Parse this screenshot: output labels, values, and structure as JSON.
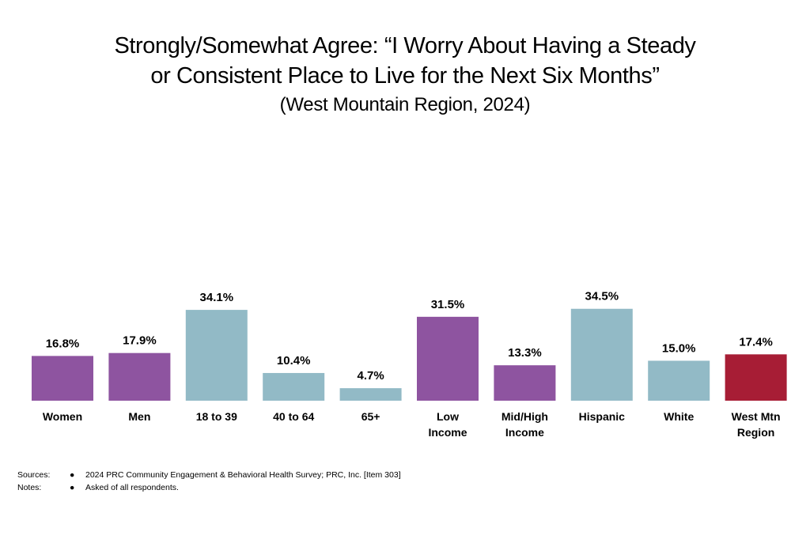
{
  "chart_data": {
    "type": "bar",
    "title_line1": "Strongly/Somewhat Agree: “I Worry About Having a Steady",
    "title_line2": "or Consistent Place to Live for the Next Six Months”",
    "subtitle": "(West Mountain Region, 2024)",
    "categories": [
      [
        "Women"
      ],
      [
        "Men"
      ],
      [
        "18 to 39"
      ],
      [
        "40 to 64"
      ],
      [
        "65+"
      ],
      [
        "Low",
        "Income"
      ],
      [
        "Mid/High",
        "Income"
      ],
      [
        "Hispanic"
      ],
      [
        "White"
      ],
      [
        "West Mtn",
        "Region"
      ]
    ],
    "values": [
      16.8,
      17.9,
      34.1,
      10.4,
      4.7,
      31.5,
      13.3,
      34.5,
      15.0,
      17.4
    ],
    "value_labels": [
      "16.8%",
      "17.9%",
      "34.1%",
      "10.4%",
      "4.7%",
      "31.5%",
      "13.3%",
      "34.5%",
      "15.0%",
      "17.4%"
    ],
    "bar_colors": [
      "#8E54A0",
      "#8E54A0",
      "#92BAC6",
      "#92BAC6",
      "#92BAC6",
      "#8E54A0",
      "#8E54A0",
      "#92BAC6",
      "#92BAC6",
      "#A71D35"
    ],
    "ylim": [
      0,
      40
    ],
    "grid": false,
    "legend": "none"
  },
  "notes": {
    "sources_label": "Sources:",
    "sources_bullet": "●",
    "sources_text": "2024 PRC Community Engagement & Behavioral Health Survey; PRC, Inc. [Item 303]",
    "notes_label": "Notes:",
    "notes_bullet": "●",
    "notes_text": "Asked of all respondents."
  }
}
